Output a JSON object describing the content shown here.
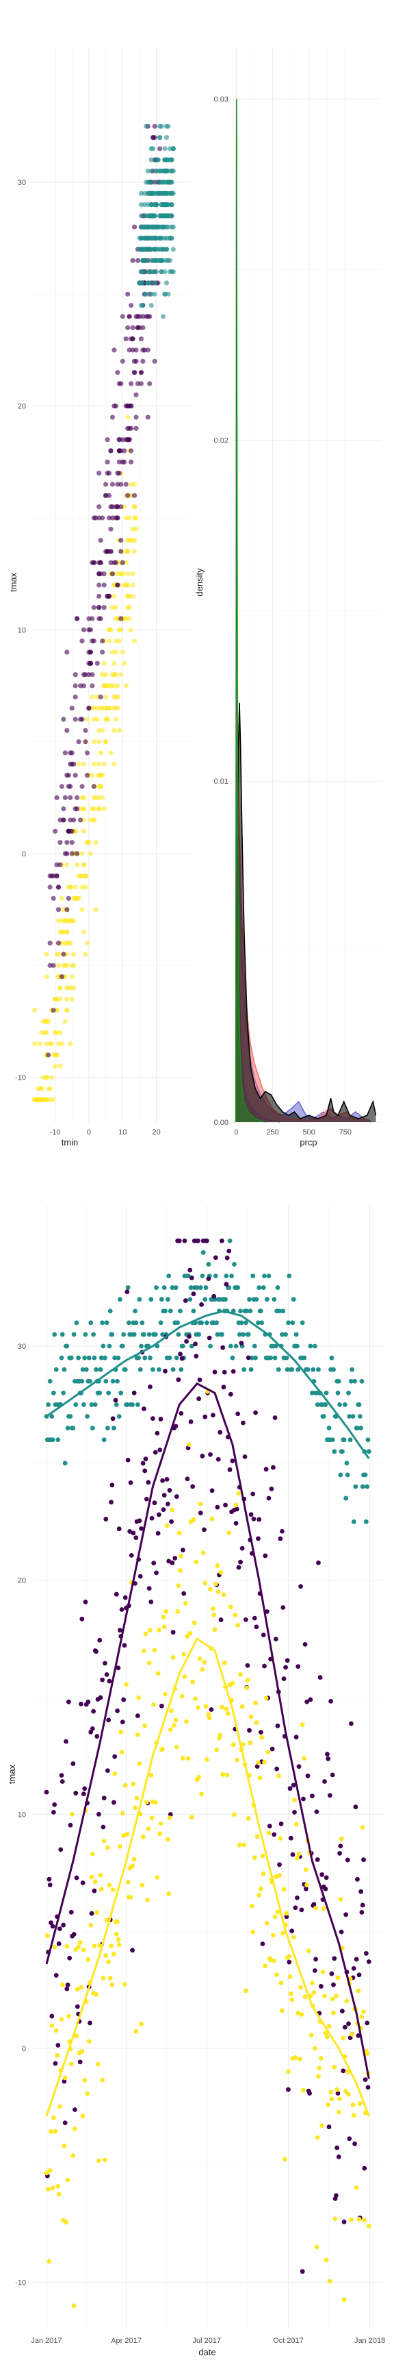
{
  "colors": {
    "viridis_dark": "#440154",
    "viridis_teal": "#21908C",
    "viridis_yellow": "#FDE725",
    "density_black": "#000000",
    "density_green": "#1E8A1E",
    "density_red": "#F4736B",
    "density_purple": "#6A6AD0",
    "density_blue": "#3D7FB0"
  },
  "chart_data": [
    {
      "id": "scatter-tmin-tmax",
      "type": "scatter",
      "xlabel": "tmin",
      "ylabel": "tmax",
      "xlim": [
        -17,
        30
      ],
      "ylim": [
        -12,
        36
      ],
      "xticks": [
        -10,
        0,
        10,
        20
      ],
      "yticks": [
        -10,
        0,
        10,
        20,
        30
      ],
      "grid": true,
      "legend": "none",
      "series": [
        {
          "color": "yellow",
          "relation": "tmax ≈ 2 + 0.95·tmin",
          "tmin_range": [
            -16,
            14
          ],
          "count": 340
        },
        {
          "color": "purple",
          "relation": "tmax ≈ 8 + 1.05·tmin",
          "tmin_range": [
            -12,
            21
          ],
          "count": 330
        },
        {
          "color": "teal",
          "relation": "tmax ≈ 26 + 0.3·tmin",
          "tmin_range": [
            15,
            25
          ],
          "count": 330
        }
      ]
    },
    {
      "id": "density-prcp",
      "type": "area",
      "xlabel": "prcp",
      "ylabel": "density",
      "xlim": [
        -25,
        1000
      ],
      "ylim": [
        0,
        0.0315
      ],
      "xticks": [
        0,
        250,
        500,
        750
      ],
      "yticks": [
        0,
        0.01,
        0.02,
        0.03
      ],
      "xtick_labels": [
        "0",
        "250",
        "500",
        "750"
      ],
      "ytick_labels": [
        "0.00",
        "0.01",
        "0.02",
        "0.03"
      ],
      "grid": true,
      "legend": "none",
      "series": [
        {
          "color": "blue",
          "points": [
            [
              0,
              0.0105
            ],
            [
              8,
              0.009
            ],
            [
              18,
              0.005
            ],
            [
              30,
              0.0025
            ],
            [
              50,
              0.0012
            ],
            [
              80,
              0.0006
            ],
            [
              130,
              0.0003
            ],
            [
              200,
              0.0001
            ],
            [
              300,
              0
            ]
          ]
        },
        {
          "color": "purple",
          "points": [
            [
              0,
              0.0085
            ],
            [
              12,
              0.0095
            ],
            [
              25,
              0.007
            ],
            [
              40,
              0.0048
            ],
            [
              60,
              0.0032
            ],
            [
              90,
              0.002
            ],
            [
              130,
              0.0012
            ],
            [
              170,
              0.0008
            ],
            [
              210,
              0.0005
            ],
            [
              260,
              0.0003
            ],
            [
              320,
              0.0002
            ],
            [
              380,
              0.0004
            ],
            [
              430,
              0.0006
            ],
            [
              480,
              0.0002
            ],
            [
              530,
              0.0001
            ],
            [
              600,
              0.0003
            ],
            [
              660,
              0.0001
            ],
            [
              700,
              0.0002
            ],
            [
              760,
              0.0001
            ],
            [
              820,
              0.0003
            ],
            [
              880,
              0.0001
            ],
            [
              930,
              0
            ]
          ]
        },
        {
          "color": "red",
          "points": [
            [
              0,
              0.006
            ],
            [
              12,
              0.01
            ],
            [
              25,
              0.008
            ],
            [
              40,
              0.0058
            ],
            [
              60,
              0.004
            ],
            [
              90,
              0.0025
            ],
            [
              120,
              0.0018
            ],
            [
              150,
              0.0014
            ],
            [
              180,
              0.001
            ],
            [
              210,
              0.0007
            ],
            [
              250,
              0.0004
            ],
            [
              300,
              0.0002
            ],
            [
              360,
              0.0001
            ],
            [
              420,
              0.0001
            ],
            [
              480,
              5e-05
            ],
            [
              560,
              0.0001
            ],
            [
              640,
              0.0004
            ],
            [
              700,
              0.0002
            ],
            [
              760,
              0.0003
            ],
            [
              800,
              0.0001
            ],
            [
              860,
              0.0001
            ],
            [
              920,
              5e-05
            ]
          ]
        },
        {
          "color": "black",
          "points": [
            [
              0,
              0.004
            ],
            [
              8,
              0.008
            ],
            [
              15,
              0.011
            ],
            [
              22,
              0.0123
            ],
            [
              30,
              0.011
            ],
            [
              40,
              0.0085
            ],
            [
              55,
              0.0055
            ],
            [
              75,
              0.003
            ],
            [
              100,
              0.0016
            ],
            [
              130,
              0.001
            ],
            [
              165,
              0.0007
            ],
            [
              200,
              0.0009
            ],
            [
              240,
              0.0008
            ],
            [
              280,
              0.0005
            ],
            [
              320,
              0.0003
            ],
            [
              360,
              0.0002
            ],
            [
              400,
              0.0003
            ],
            [
              440,
              0.0001
            ],
            [
              500,
              0.0002
            ],
            [
              560,
              0.0001
            ],
            [
              620,
              0.0002
            ],
            [
              650,
              0.0007
            ],
            [
              670,
              0.0003
            ],
            [
              700,
              0.0002
            ],
            [
              740,
              0.0006
            ],
            [
              780,
              0.0002
            ],
            [
              840,
              0.0001
            ],
            [
              900,
              0.0002
            ],
            [
              940,
              0.0006
            ],
            [
              960,
              0.0002
            ]
          ]
        },
        {
          "color": "green",
          "points": [
            [
              -3,
              0
            ],
            [
              0,
              0.016
            ],
            [
              1,
              0.026
            ],
            [
              2,
              0.03
            ],
            [
              3,
              0.029
            ],
            [
              4,
              0.025
            ],
            [
              6,
              0.018
            ],
            [
              9,
              0.011
            ],
            [
              13,
              0.0065
            ],
            [
              18,
              0.004
            ],
            [
              25,
              0.0022
            ],
            [
              35,
              0.0012
            ],
            [
              50,
              0.0006
            ],
            [
              80,
              0.0003
            ],
            [
              130,
              0.0001
            ],
            [
              200,
              0
            ]
          ]
        }
      ]
    },
    {
      "id": "scatter-date-tmax",
      "type": "scatter",
      "xlabel": "date",
      "ylabel": "tmax",
      "xlim": [
        "2016-12-15",
        "2018-01-16"
      ],
      "ylim": [
        -12,
        36
      ],
      "xticks": [
        "2017-01-01",
        "2017-04-01",
        "2017-07-01",
        "2017-10-01",
        "2018-01-01"
      ],
      "xtick_labels": [
        "Jan 2017",
        "Apr 2017",
        "Jul 2017",
        "Oct 2017",
        "Jan 2018"
      ],
      "yticks": [
        -10,
        0,
        10,
        20,
        30
      ],
      "grid": true,
      "legend": "none",
      "series": [
        {
          "color": "teal",
          "smooth": [
            [
              0,
              27.0
            ],
            [
              30,
              27.8
            ],
            [
              60,
              28.6
            ],
            [
              90,
              29.4
            ],
            [
              120,
              30.0
            ],
            [
              150,
              30.8
            ],
            [
              180,
              31.3
            ],
            [
              200,
              31.5
            ],
            [
              220,
              31.3
            ],
            [
              250,
              30.5
            ],
            [
              280,
              29.4
            ],
            [
              310,
              28.0
            ],
            [
              340,
              26.5
            ],
            [
              364,
              25.2
            ]
          ]
        },
        {
          "color": "purple",
          "smooth": [
            [
              0,
              3.6
            ],
            [
              30,
              8.0
            ],
            [
              60,
              13.0
            ],
            [
              90,
              18.5
            ],
            [
              120,
              24.0
            ],
            [
              150,
              27.5
            ],
            [
              170,
              28.4
            ],
            [
              190,
              28.0
            ],
            [
              210,
              25.8
            ],
            [
              240,
              20.0
            ],
            [
              270,
              13.5
            ],
            [
              300,
              8.0
            ],
            [
              330,
              4.5
            ],
            [
              350,
              1.5
            ],
            [
              364,
              -1.3
            ]
          ]
        },
        {
          "color": "yellow",
          "smooth": [
            [
              0,
              -2.9
            ],
            [
              30,
              0.5
            ],
            [
              60,
              4.0
            ],
            [
              90,
              8.0
            ],
            [
              120,
              12.5
            ],
            [
              150,
              16.0
            ],
            [
              170,
              17.5
            ],
            [
              190,
              17.0
            ],
            [
              210,
              14.5
            ],
            [
              240,
              9.5
            ],
            [
              270,
              5.0
            ],
            [
              300,
              1.8
            ],
            [
              330,
              0.0
            ],
            [
              350,
              -1.5
            ],
            [
              364,
              -2.9
            ]
          ]
        }
      ]
    }
  ]
}
